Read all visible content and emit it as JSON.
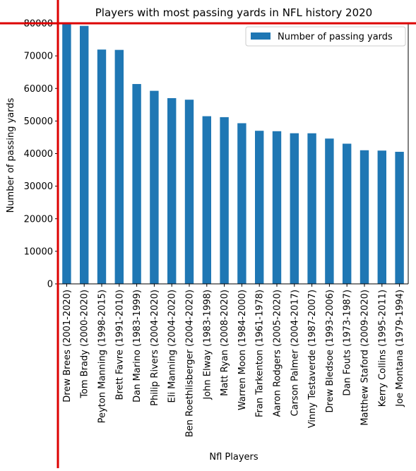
{
  "chart_data": {
    "type": "bar",
    "title": "Players with most passing yards in NFL history 2020",
    "xlabel": "Nfl Players",
    "ylabel": "Number of passing yards",
    "ylim": [
      0,
      80000
    ],
    "yticks": [
      0,
      10000,
      20000,
      30000,
      40000,
      50000,
      60000,
      70000,
      80000
    ],
    "grid": false,
    "legend_position": "top-right",
    "categories": [
      "Drew Brees (2001-2020)",
      "Tom Brady (2000-2020)",
      "Peyton Manning (1998-2015)",
      "Brett Favre (1991-2010)",
      "Dan Marino (1983-1999)",
      "Philip Rivers (2004-2020)",
      "Eli Manning (2004-2020)",
      "Ben Roethlisberger (2004-2020)",
      "John Elway (1983-1998)",
      "Matt Ryan (2008-2020)",
      "Warren Moon (1984-2000)",
      "Fran Tarkenton (1961-1978)",
      "Aaron Rodgers (2005-2020)",
      "Carson Palmer (2004-2017)",
      "Vinny Testaverde (1987-2007)",
      "Drew Bledsoe (1993-2006)",
      "Dan Fouts (1973-1987)",
      "Matthew Staford (2009-2020)",
      "Kerry Collins (1995-2011)",
      "Joe Montana (1979-1994)"
    ],
    "series": [
      {
        "name": "Number of passing yards",
        "color": "#1f77b4",
        "values": [
          80358,
          79204,
          71940,
          71838,
          61361,
          59271,
          57023,
          56545,
          51475,
          51186,
          49325,
          47003,
          46872,
          46247,
          46233,
          44611,
          43040,
          41025,
          40922,
          40551
        ]
      }
    ]
  },
  "overlay": {
    "line_color": "#dd0000"
  }
}
